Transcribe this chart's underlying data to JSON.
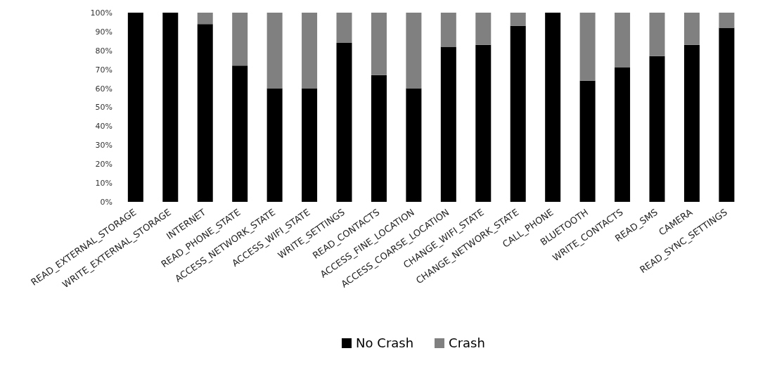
{
  "chart_data": {
    "type": "bar",
    "stacked": true,
    "categories": [
      "READ_EXTERNAL_STORAGE",
      "WRITE_EXTERNAL_STORAGE",
      "INTERNET",
      "READ_PHONE_STATE",
      "ACCESS_NETWORK_STATE",
      "ACCESS_WIFI_STATE",
      "WRITE_SETTINGS",
      "READ_CONTACTS",
      "ACCESS_FINE_LOCATION",
      "ACCESS_COARSE_LOCATION",
      "CHANGE_WIFI_STATE",
      "CHANGE_NETWORK_STATE",
      "CALL_PHONE",
      "BLUETOOTH",
      "WRITE_CONTACTS",
      "READ_SMS",
      "CAMERA",
      "READ_SYNC_SETTINGS"
    ],
    "series": [
      {
        "name": "No Crash",
        "color": "#000000",
        "values": [
          100,
          100,
          94,
          72,
          60,
          60,
          84,
          67,
          60,
          82,
          83,
          93,
          100,
          64,
          71,
          77,
          83,
          92
        ]
      },
      {
        "name": "Crash",
        "color": "#808080",
        "values": [
          0,
          0,
          6,
          28,
          40,
          40,
          16,
          33,
          40,
          18,
          17,
          7,
          0,
          36,
          29,
          23,
          17,
          8
        ]
      }
    ],
    "ylim": [
      0,
      100
    ],
    "yticks": [
      {
        "value": 0,
        "label": "0%"
      },
      {
        "value": 10,
        "label": "10%"
      },
      {
        "value": 20,
        "label": "20%"
      },
      {
        "value": 30,
        "label": "30%"
      },
      {
        "value": 40,
        "label": "40%"
      },
      {
        "value": 50,
        "label": "50%"
      },
      {
        "value": 60,
        "label": "60%"
      },
      {
        "value": 70,
        "label": "70%"
      },
      {
        "value": 80,
        "label": "80%"
      },
      {
        "value": 90,
        "label": "90%"
      },
      {
        "value": 100,
        "label": "100%"
      }
    ],
    "grid": false,
    "legend": "bottom"
  }
}
